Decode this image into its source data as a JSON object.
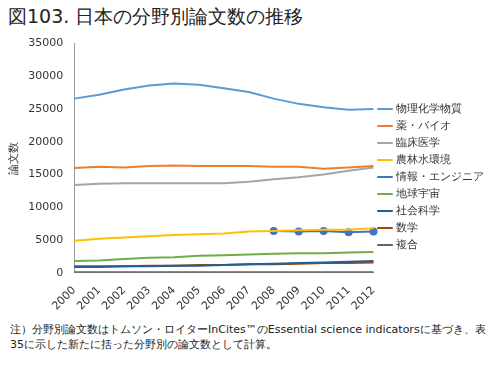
{
  "chart_data": {
    "type": "line",
    "title": "図103. 日本の分野別論文数の推移",
    "y_label": "論文数",
    "note": "注）分野別論文数はトムソン・ロイターInCites™のEssential science indicatorsに基づき、表35に示した新たに括った分野別の論文数として計算。",
    "categories": [
      "2000",
      "2001",
      "2002",
      "2003",
      "2004",
      "2005",
      "2006",
      "2007",
      "2008",
      "2009",
      "2010",
      "2011",
      "2012"
    ],
    "ylim": [
      0,
      35000
    ],
    "yticks": [
      0,
      5000,
      10000,
      15000,
      20000,
      25000,
      30000,
      35000
    ],
    "grid": false,
    "legend": "right",
    "marker": "none",
    "series": [
      {
        "name": "物理化学物質",
        "color": "#5b9bd5",
        "values": [
          26600,
          27200,
          28000,
          28600,
          28900,
          28700,
          28200,
          27600,
          26600,
          25800,
          25300,
          24900,
          25000
        ]
      },
      {
        "name": "薬・バイオ",
        "color": "#ed7d31",
        "values": [
          16000,
          16200,
          16100,
          16300,
          16400,
          16300,
          16300,
          16300,
          16200,
          16200,
          15900,
          16100,
          16300
        ]
      },
      {
        "name": "臨床医学",
        "color": "#a5a5a5",
        "values": [
          13400,
          13600,
          13700,
          13700,
          13700,
          13700,
          13700,
          13900,
          14300,
          14600,
          15000,
          15600,
          16100
        ]
      },
      {
        "name": "農林水環境",
        "color": "#ffc000",
        "values": [
          4900,
          5200,
          5400,
          5600,
          5800,
          5900,
          6000,
          6300,
          6400,
          6500,
          6600,
          6600,
          6800
        ]
      },
      {
        "name": "情報・エンジニア",
        "color": "#4472c4",
        "marker": "circle",
        "values": [
          null,
          null,
          null,
          null,
          null,
          null,
          null,
          null,
          6400,
          6300,
          6400,
          6200,
          6300
        ]
      },
      {
        "name": "地球宇宙",
        "color": "#70ad47",
        "values": [
          1800,
          1900,
          2100,
          2300,
          2400,
          2600,
          2700,
          2800,
          2900,
          3000,
          3000,
          3100,
          3200
        ]
      },
      {
        "name": "社会科学",
        "color": "#255e91",
        "values": [
          900,
          900,
          1000,
          1000,
          1100,
          1100,
          1200,
          1300,
          1400,
          1500,
          1600,
          1700,
          1800
        ]
      },
      {
        "name": "数学",
        "color": "#9e480e",
        "values": [
          1000,
          1000,
          1000,
          1100,
          1100,
          1200,
          1200,
          1300,
          1300,
          1400,
          1500,
          1500,
          1600
        ]
      },
      {
        "name": "複合",
        "color": "#636363",
        "values": [
          100,
          100,
          100,
          100,
          100,
          100,
          100,
          100,
          100,
          100,
          100,
          100,
          100
        ]
      }
    ]
  }
}
